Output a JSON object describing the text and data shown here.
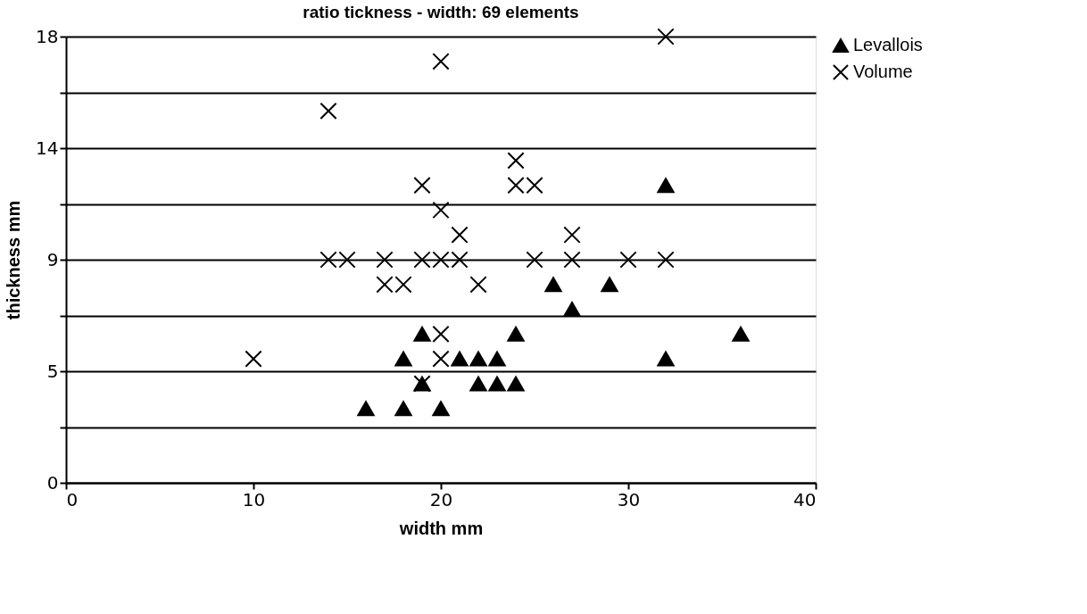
{
  "chart_data": {
    "type": "scatter",
    "title": "ratio tickness - width: 69 elements",
    "xlabel": "width mm",
    "ylabel": "thickness mm",
    "xlim": [
      0,
      40
    ],
    "xticks": [
      0,
      10,
      20,
      30,
      40
    ],
    "ylim": [
      0,
      18
    ],
    "yticks": [
      0,
      {
        "value": 2.25,
        "label": null
      },
      {
        "value": 4.5,
        "label": "5"
      },
      {
        "value": 6.75,
        "label": null
      },
      9,
      {
        "value": 11.25,
        "label": null
      },
      {
        "value": 13.5,
        "label": "14"
      },
      {
        "value": 15.75,
        "label": null
      },
      18
    ],
    "grid": "y",
    "legend": "right",
    "series": [
      {
        "name": "Levallois",
        "color": "#000000",
        "marker": "triangle",
        "x": [
          16,
          18,
          20,
          18,
          19,
          19,
          21,
          22,
          23,
          22,
          23,
          24,
          24,
          26,
          27,
          29,
          32,
          32,
          36
        ],
        "values": [
          3,
          3,
          3,
          5,
          4,
          6,
          5,
          5,
          5,
          4,
          4,
          4,
          6,
          8,
          7,
          8,
          12,
          5,
          6
        ]
      },
      {
        "name": "Volume",
        "color": "#000000",
        "marker": "cross",
        "x": [
          10,
          14,
          20,
          32,
          19,
          20,
          21,
          24,
          24,
          25,
          14,
          15,
          17,
          19,
          20,
          21,
          25,
          27,
          30,
          32,
          17,
          18,
          22,
          27,
          20,
          20,
          19
        ],
        "values": [
          5,
          15,
          17,
          18,
          12,
          11,
          10,
          13,
          12,
          12,
          9,
          9,
          9,
          9,
          9,
          9,
          9,
          9,
          9,
          9,
          8,
          8,
          8,
          10,
          6,
          5,
          4
        ]
      }
    ]
  }
}
